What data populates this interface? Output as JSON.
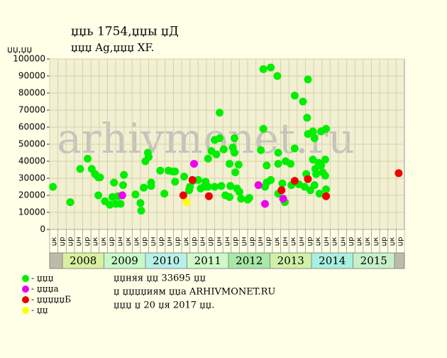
{
  "chart_data": {
    "type": "scatter",
    "title": "џџь 1754,џџы џД",
    "subtitle": "џџџ Ag,џџџ XF.",
    "ylabel": "џџ,џџ",
    "watermark": "arhivmonet.ru",
    "ylim": [
      0,
      100000
    ],
    "yticks": [
      0,
      10000,
      20000,
      30000,
      40000,
      50000,
      60000,
      70000,
      80000,
      90000,
      100000
    ],
    "xlim": [
      0,
      43
    ],
    "grid": true,
    "columns": [
      "џк",
      "џр",
      "џр",
      "џн",
      "џр",
      "џк",
      "џк",
      "џр",
      "џн",
      "џк",
      "џк",
      "џр",
      "џн",
      "џр",
      "џн",
      "џр",
      "џк",
      "џр",
      "џн",
      "џр",
      "џн",
      "џн",
      "џр",
      "џн",
      "џр",
      "џн",
      "џр",
      "џк",
      "џн",
      "џк",
      "џн",
      "џр",
      "џк",
      "џн",
      "џк",
      "џн",
      "џр",
      "џк",
      "џк",
      "џк",
      "џр",
      "џк",
      "џр"
    ],
    "years": [
      "2008",
      "2009",
      "2010",
      "2011",
      "2012",
      "2013",
      "2014",
      "2015"
    ],
    "year_colors": [
      "#d8f0a0",
      "#c8f8c8",
      "#b8f0e8",
      "#d0f8c8",
      "#a8e8a8",
      "#d0f0a8",
      "#a8f0e0",
      "#c8f0c8"
    ],
    "notes": [
      "џџняя џџ 33695 џџ",
      "џ џџџџиям џџа ARHIVMONET.RU",
      "џџџ џ 20 џя 2017 џџ."
    ],
    "series": [
      {
        "name": "- џџџ",
        "color": "#00ee00",
        "x": [
          0.4,
          2.5,
          3.7,
          4.6,
          5.1,
          5.5,
          5.9,
          5.9,
          6.1,
          6.7,
          7.3,
          7.6,
          7.8,
          8.0,
          8.3,
          8.6,
          8.9,
          9.0,
          10.4,
          11.0,
          11.1,
          11.4,
          11.6,
          11.9,
          12.0,
          12.3,
          12.3,
          13.4,
          13.9,
          14.4,
          14.9,
          15.2,
          15.2,
          16.3,
          16.9,
          17.0,
          17.4,
          18.0,
          18.3,
          18.7,
          18.9,
          19.2,
          19.2,
          19.6,
          20.0,
          20.0,
          20.2,
          20.6,
          20.6,
          20.8,
          21.1,
          21.3,
          21.8,
          21.8,
          21.9,
          22.2,
          22.4,
          22.4,
          22.5,
          22.7,
          22.9,
          23.0,
          23.2,
          24.0,
          24.2,
          25.6,
          25.9,
          25.9,
          26.1,
          26.3,
          26.3,
          26.8,
          26.8,
          27.6,
          27.7,
          27.7,
          27.7,
          28.2,
          28.5,
          28.6,
          29.2,
          29.3,
          29.7,
          29.7,
          30.2,
          30.7,
          30.9,
          31.1,
          31.2,
          31.3,
          31.3,
          31.6,
          31.9,
          31.9,
          32.1,
          32.1,
          32.2,
          32.6,
          32.7,
          32.9,
          32.9,
          33.1,
          33.4,
          33.4,
          33.5,
          33.5,
          32.3
        ],
        "values": [
          25000,
          16000,
          35500,
          41500,
          35500,
          32500,
          30500,
          20000,
          30500,
          16500,
          14500,
          19000,
          27500,
          15000,
          19500,
          15000,
          26000,
          32000,
          20500,
          15500,
          11000,
          24500,
          40000,
          45000,
          42500,
          27500,
          25500,
          34500,
          21000,
          34500,
          34000,
          34000,
          28000,
          31000,
          23000,
          25000,
          28500,
          29000,
          24000,
          25000,
          28000,
          41500,
          25000,
          46000,
          25000,
          52500,
          44000,
          53500,
          68500,
          25500,
          47000,
          20000,
          19000,
          38500,
          25500,
          48000,
          53500,
          45000,
          33500,
          24000,
          38000,
          22000,
          18000,
          17500,
          18500,
          46500,
          59000,
          94000,
          25000,
          37500,
          27500,
          95000,
          29000,
          90000,
          38500,
          45000,
          21000,
          27000,
          16000,
          40000,
          38500,
          26000,
          78500,
          47500,
          26500,
          75000,
          25000,
          32500,
          65500,
          88000,
          56000,
          23000,
          57500,
          41000,
          53500,
          26000,
          35500,
          39000,
          21000,
          57500,
          37500,
          33500,
          31500,
          41000,
          59000,
          23500,
          32500
        ]
      },
      {
        "name": "- џџџа",
        "color": "#ee00ee",
        "x": [
          8.8,
          17.5,
          25.3,
          26.1,
          28.3
        ],
        "values": [
          20000,
          38500,
          26000,
          15000,
          18000
        ]
      },
      {
        "name": "- џџџџџБ",
        "color": "#ee0000",
        "x": [
          16.2,
          17.3,
          19.3,
          28.1,
          29.7,
          31.3,
          33.5,
          42.3
        ],
        "values": [
          20000,
          29000,
          19500,
          23000,
          28500,
          29500,
          19500,
          33000
        ]
      },
      {
        "name": "- џџ",
        "color": "#ffff00",
        "x": [
          16.6
        ],
        "values": [
          16000
        ]
      }
    ]
  }
}
